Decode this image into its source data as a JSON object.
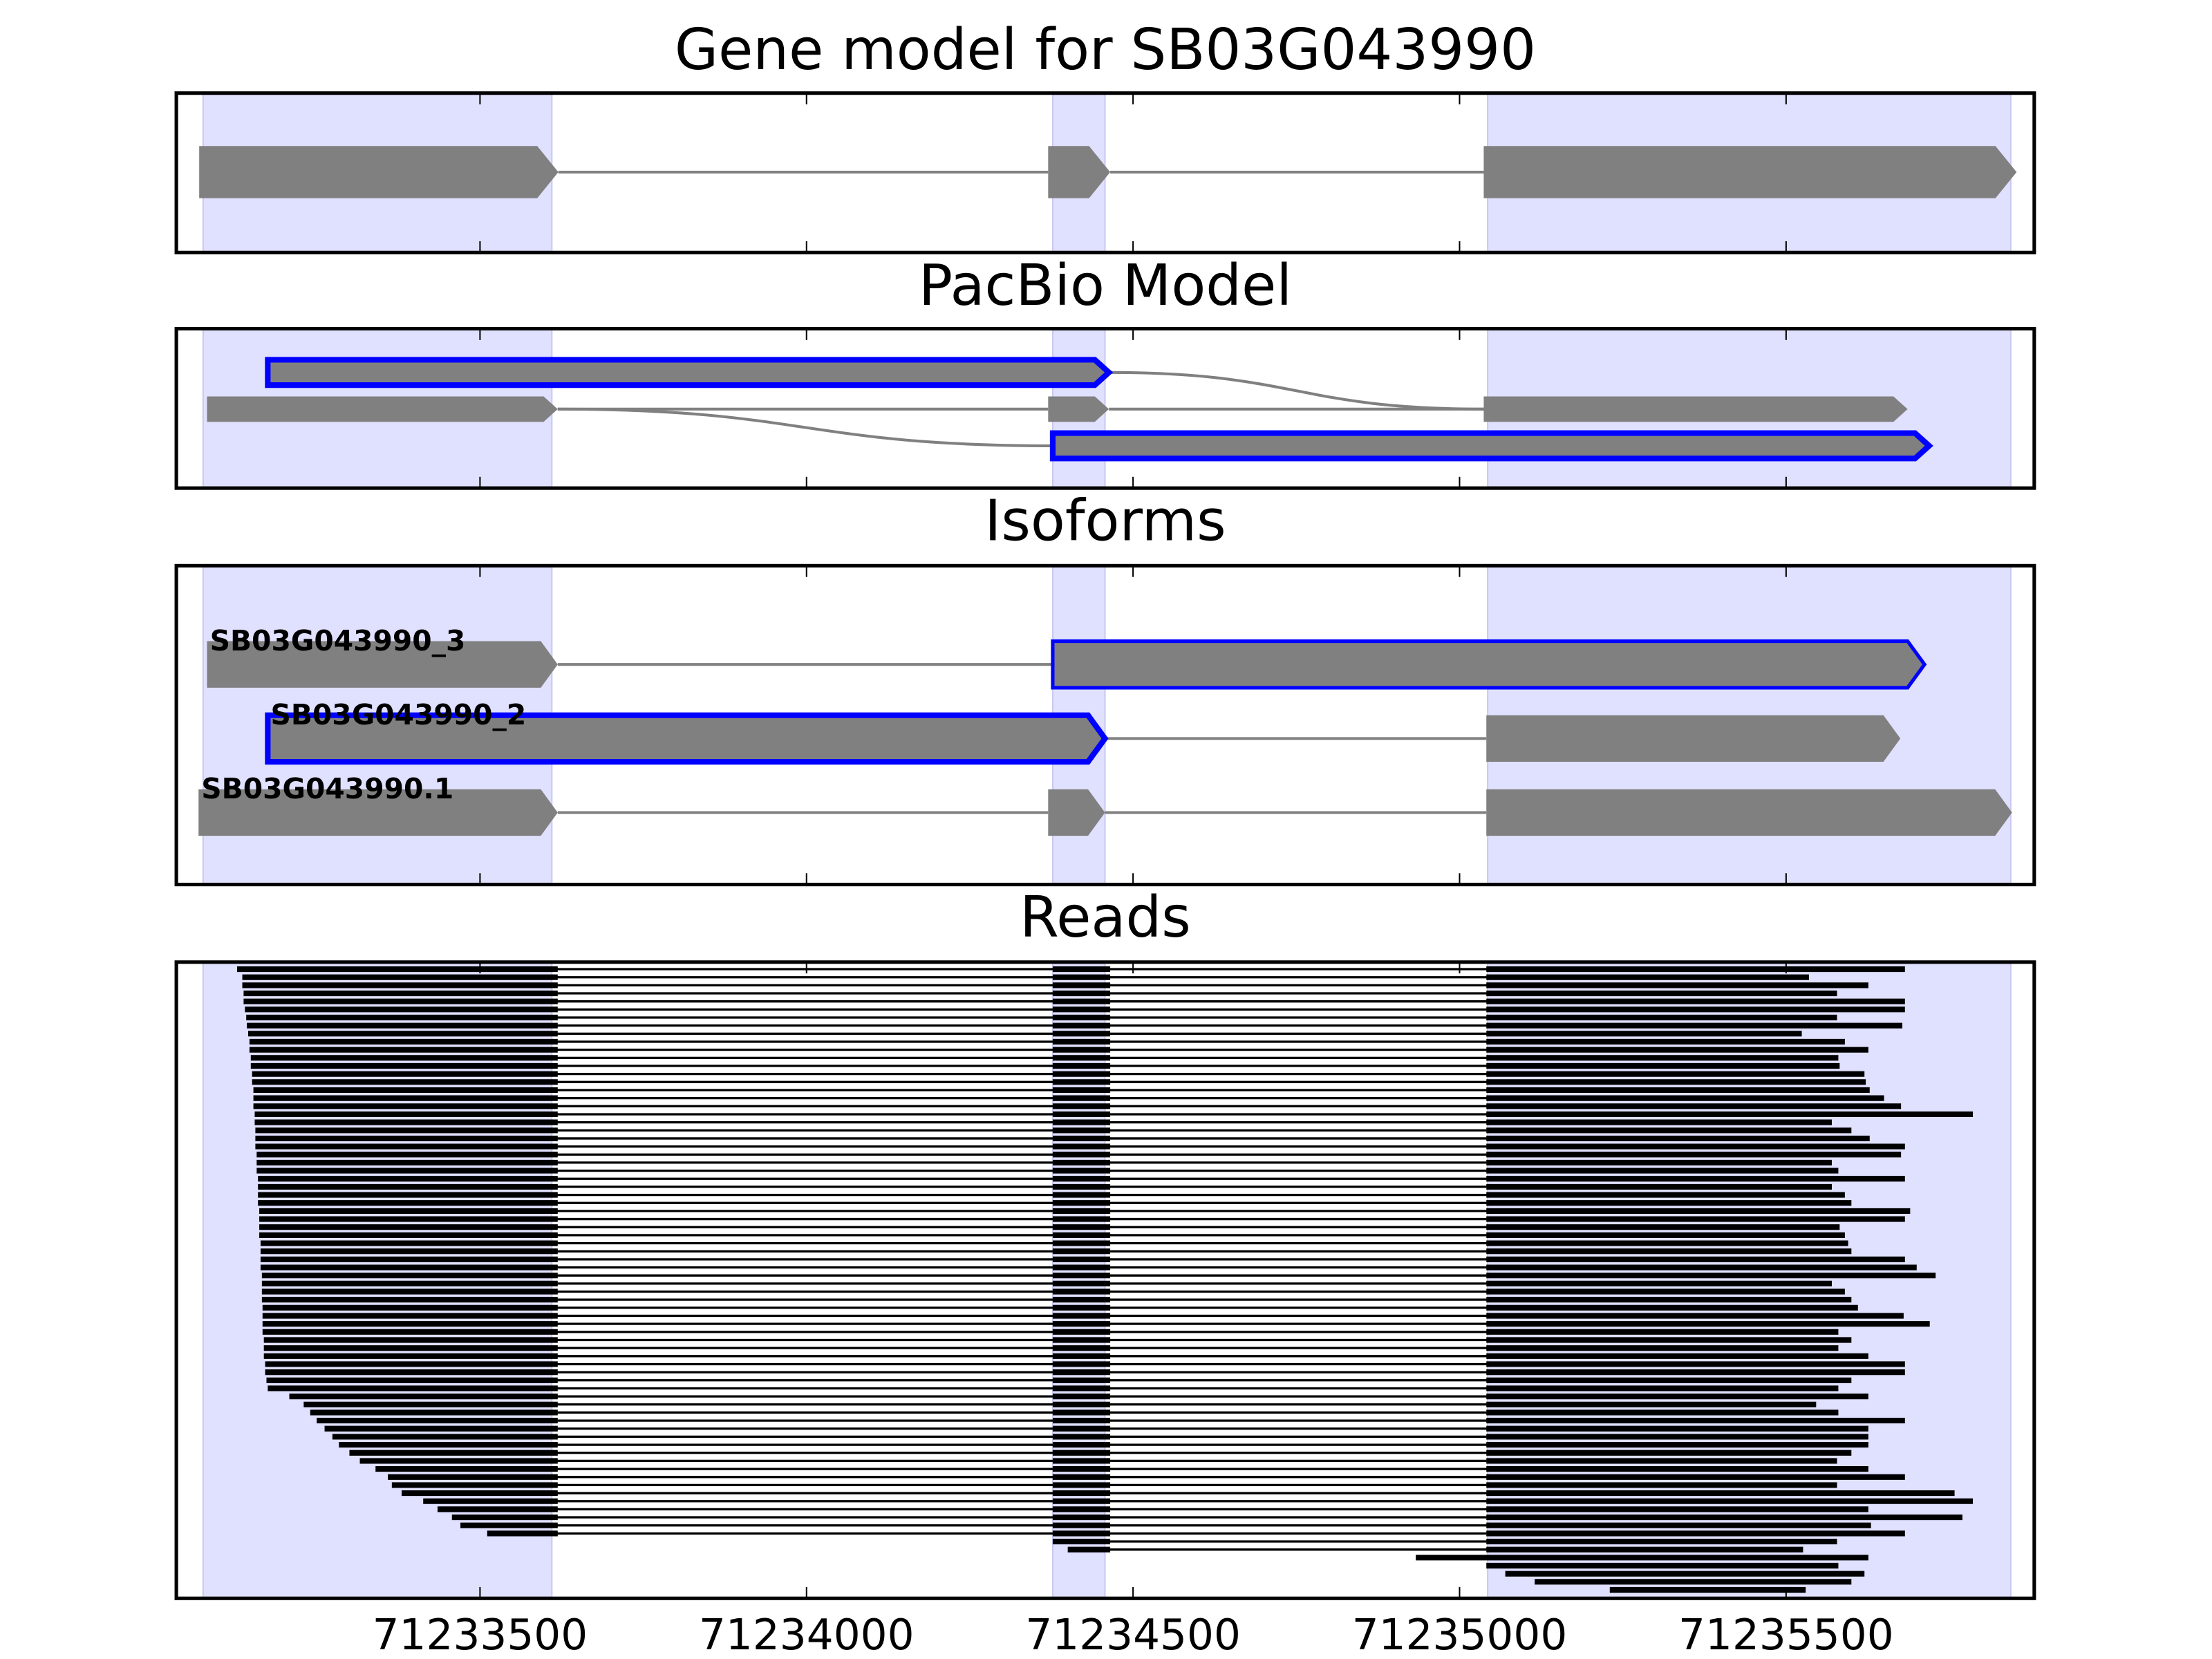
{
  "chart_data": {
    "type": "genome-browser",
    "xlim": [
      71233035,
      71235880
    ],
    "xticks": [
      71233500,
      71234000,
      71234500,
      71235000,
      71235500
    ],
    "shaded_regions": [
      [
        71233076,
        71233610
      ],
      [
        71234377,
        71234457
      ],
      [
        71235043,
        71235844
      ]
    ],
    "shade_color": "#e0e0ff",
    "exon_color": "#808080",
    "intron_color": "#808080",
    "highlight_color": "#0000ff",
    "read_color": "#000000",
    "panels": [
      {
        "type": "gene-model",
        "title": "Gene model for SB03G043990",
        "exons": [
          [
            71233070,
            71233620
          ],
          [
            71234370,
            71234465
          ],
          [
            71235037,
            71235853
          ]
        ]
      },
      {
        "type": "splice-graph",
        "title": "PacBio Model",
        "nodes": [
          {
            "row": 0,
            "start": 71233175,
            "end": 71234463,
            "highlight": true
          },
          {
            "row": 1,
            "start": 71233082,
            "end": 71233619,
            "highlight": false
          },
          {
            "row": 1,
            "start": 71234370,
            "end": 71234463,
            "highlight": false
          },
          {
            "row": 1,
            "start": 71235037,
            "end": 71235686,
            "highlight": false
          },
          {
            "row": 2,
            "start": 71234377,
            "end": 71235719,
            "highlight": true
          }
        ],
        "edges": [
          [
            0,
            3
          ],
          [
            1,
            2
          ],
          [
            2,
            3
          ],
          [
            1,
            4
          ]
        ]
      },
      {
        "type": "isoforms",
        "title": "Isoforms",
        "isoforms": [
          {
            "name": "SB03G043990_3",
            "exons": [
              {
                "start": 71233082,
                "end": 71233619,
                "highlight": false
              },
              {
                "start": 71234377,
                "end": 71235712,
                "highlight": true
              }
            ]
          },
          {
            "name": "SB03G043990_2",
            "exons": [
              {
                "start": 71233175,
                "end": 71234457,
                "highlight": true
              },
              {
                "start": 71235041,
                "end": 71235675,
                "highlight": false
              }
            ]
          },
          {
            "name": "SB03G043990.1",
            "exons": [
              {
                "start": 71233069,
                "end": 71233619,
                "highlight": false
              },
              {
                "start": 71234370,
                "end": 71234457,
                "highlight": false
              },
              {
                "start": 71235041,
                "end": 71235846,
                "highlight": false
              }
            ]
          }
        ]
      },
      {
        "type": "reads",
        "title": "Reads",
        "introns": [
          [
            71233619,
            71234377
          ],
          [
            71234465,
            71235041
          ]
        ],
        "reads": [
          [
            71233128,
            71235682
          ],
          [
            71233136,
            71235535
          ],
          [
            71233136,
            71235626
          ],
          [
            71233138,
            71235578
          ],
          [
            71233138,
            71235682
          ],
          [
            71233140,
            71235682
          ],
          [
            71233142,
            71235578
          ],
          [
            71233143,
            71235678
          ],
          [
            71233145,
            71235524
          ],
          [
            71233147,
            71235590
          ],
          [
            71233147,
            71235626
          ],
          [
            71233149,
            71235580
          ],
          [
            71233149,
            71235582
          ],
          [
            71233151,
            71235620
          ],
          [
            71233151,
            71235622
          ],
          [
            71233153,
            71235628
          ],
          [
            71233153,
            71235650
          ],
          [
            71233153,
            71235676
          ],
          [
            71233155,
            71235786
          ],
          [
            71233155,
            71235570
          ],
          [
            71233156,
            71235600
          ],
          [
            71233156,
            71235628
          ],
          [
            71233156,
            71235682
          ],
          [
            71233158,
            71235676
          ],
          [
            71233158,
            71235570
          ],
          [
            71233158,
            71235580
          ],
          [
            71233160,
            71235682
          ],
          [
            71233160,
            71235570
          ],
          [
            71233160,
            71235590
          ],
          [
            71233160,
            71235600
          ],
          [
            71233162,
            71235690
          ],
          [
            71233162,
            71235682
          ],
          [
            71233162,
            71235582
          ],
          [
            71233162,
            71235590
          ],
          [
            71233164,
            71235595
          ],
          [
            71233164,
            71235600
          ],
          [
            71233164,
            71235682
          ],
          [
            71233164,
            71235700
          ],
          [
            71233166,
            71235729
          ],
          [
            71233166,
            71235570
          ],
          [
            71233166,
            71235590
          ],
          [
            71233166,
            71235600
          ],
          [
            71233167,
            71235610
          ],
          [
            71233167,
            71235680
          ],
          [
            71233167,
            71235720
          ],
          [
            71233167,
            71235580
          ],
          [
            71233169,
            71235600
          ],
          [
            71233169,
            71235580
          ],
          [
            71233169,
            71235626
          ],
          [
            71233171,
            71235682
          ],
          [
            71233171,
            71235682
          ],
          [
            71233173,
            71235600
          ],
          [
            71233175,
            71235580
          ],
          [
            71233208,
            71235626
          ],
          [
            71233230,
            71235546
          ],
          [
            71233240,
            71235580
          ],
          [
            71233250,
            71235682
          ],
          [
            71233262,
            71235626
          ],
          [
            71233274,
            71235626
          ],
          [
            71233284,
            71235626
          ],
          [
            71233300,
            71235600
          ],
          [
            71233316,
            71235578
          ],
          [
            71233340,
            71235626
          ],
          [
            71233359,
            71235682
          ],
          [
            71233365,
            71235578
          ],
          [
            71233380,
            71235758
          ],
          [
            71233413,
            71235786
          ],
          [
            71233435,
            71235626
          ],
          [
            71233457,
            71235770
          ],
          [
            71233470,
            71235630
          ],
          [
            71233511,
            71235682
          ],
          [
            71234377,
            71235578
          ],
          [
            71234400,
            71235526
          ],
          [
            71234933,
            71235626
          ],
          [
            71235041,
            71235580
          ],
          [
            71235070,
            71235620
          ],
          [
            71235115,
            71235600
          ],
          [
            71235230,
            71235530
          ]
        ]
      }
    ]
  }
}
